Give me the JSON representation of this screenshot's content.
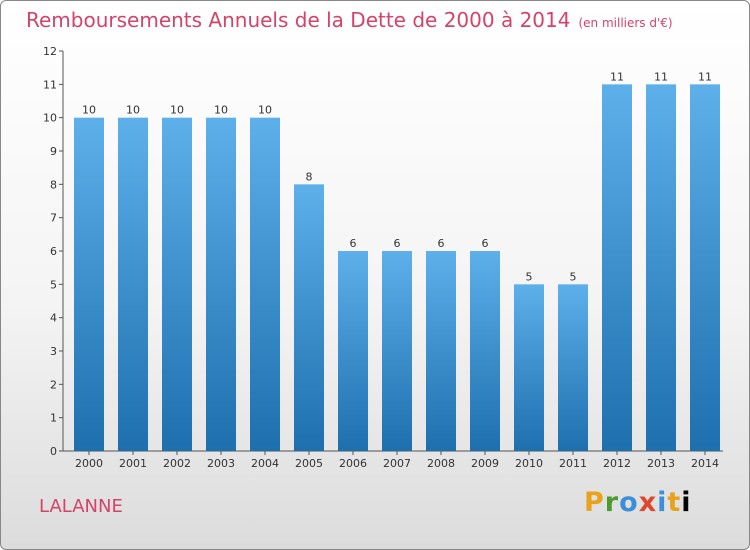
{
  "header": {
    "title": "Remboursements Annuels de la Dette de 2000 à 2014",
    "subtitle": "(en milliers d'€)"
  },
  "footer": {
    "commune": "LALANNE",
    "logo": "Proxiti"
  },
  "colors": {
    "accent": "#d4436a",
    "bar_light": "#5db0ea",
    "bar_dark": "#1e6fae"
  },
  "chart_data": {
    "type": "bar",
    "title": "Remboursements Annuels de la Dette de 2000 à 2014",
    "subtitle": "(en milliers d'€)",
    "xlabel": "",
    "ylabel": "",
    "categories": [
      "2000",
      "2001",
      "2002",
      "2003",
      "2004",
      "2005",
      "2006",
      "2007",
      "2008",
      "2009",
      "2010",
      "2011",
      "2012",
      "2013",
      "2014"
    ],
    "values": [
      10,
      10,
      10,
      10,
      10,
      8,
      6,
      6,
      6,
      6,
      5,
      5,
      11,
      11,
      11
    ],
    "data_labels": [
      "10",
      "10",
      "10",
      "10",
      "10",
      "8",
      "6",
      "6",
      "6",
      "6",
      "5",
      "5",
      "11",
      "11",
      "11"
    ],
    "y_ticks": [
      "0",
      "1",
      "2",
      "3",
      "4",
      "5",
      "6",
      "7",
      "8",
      "9",
      "10",
      "11",
      "12"
    ],
    "ylim": [
      0,
      12
    ],
    "grid": false,
    "legend": "none"
  }
}
